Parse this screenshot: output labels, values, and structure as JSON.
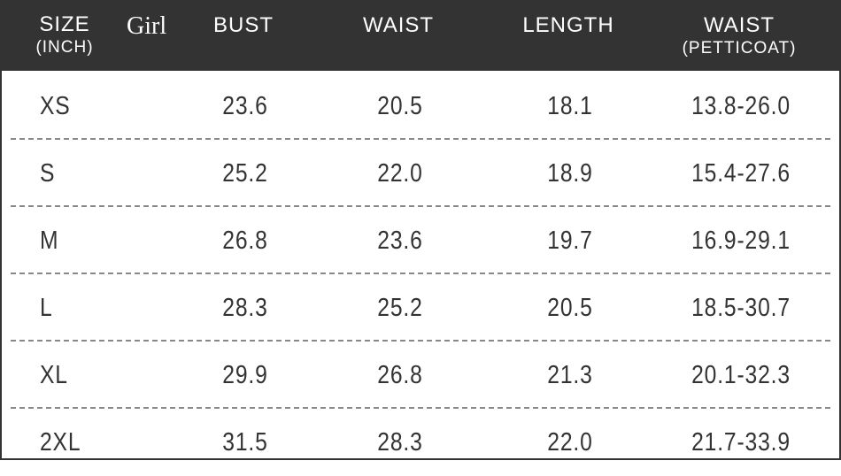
{
  "header": {
    "size": "SIZE",
    "unit": "(INCH)",
    "category": "Girl",
    "bust": "BUST",
    "waist": "WAIST",
    "length": "LENGTH",
    "petticoat_waist": "WAIST",
    "petticoat_sub": "(PETTICOAT)"
  },
  "rows": [
    [
      "XS",
      "23.6",
      "20.5",
      "18.1",
      "13.8-26.0"
    ],
    [
      "S",
      "25.2",
      "22.0",
      "18.9",
      "15.4-27.6"
    ],
    [
      "M",
      "26.8",
      "23.6",
      "19.7",
      "16.9-29.1"
    ],
    [
      "L",
      "28.3",
      "25.2",
      "20.5",
      "18.5-30.7"
    ],
    [
      "XL",
      "29.9",
      "26.8",
      "21.3",
      "20.1-32.3"
    ],
    [
      "2XL",
      "31.5",
      "28.3",
      "22.0",
      "21.7-33.9"
    ]
  ]
}
